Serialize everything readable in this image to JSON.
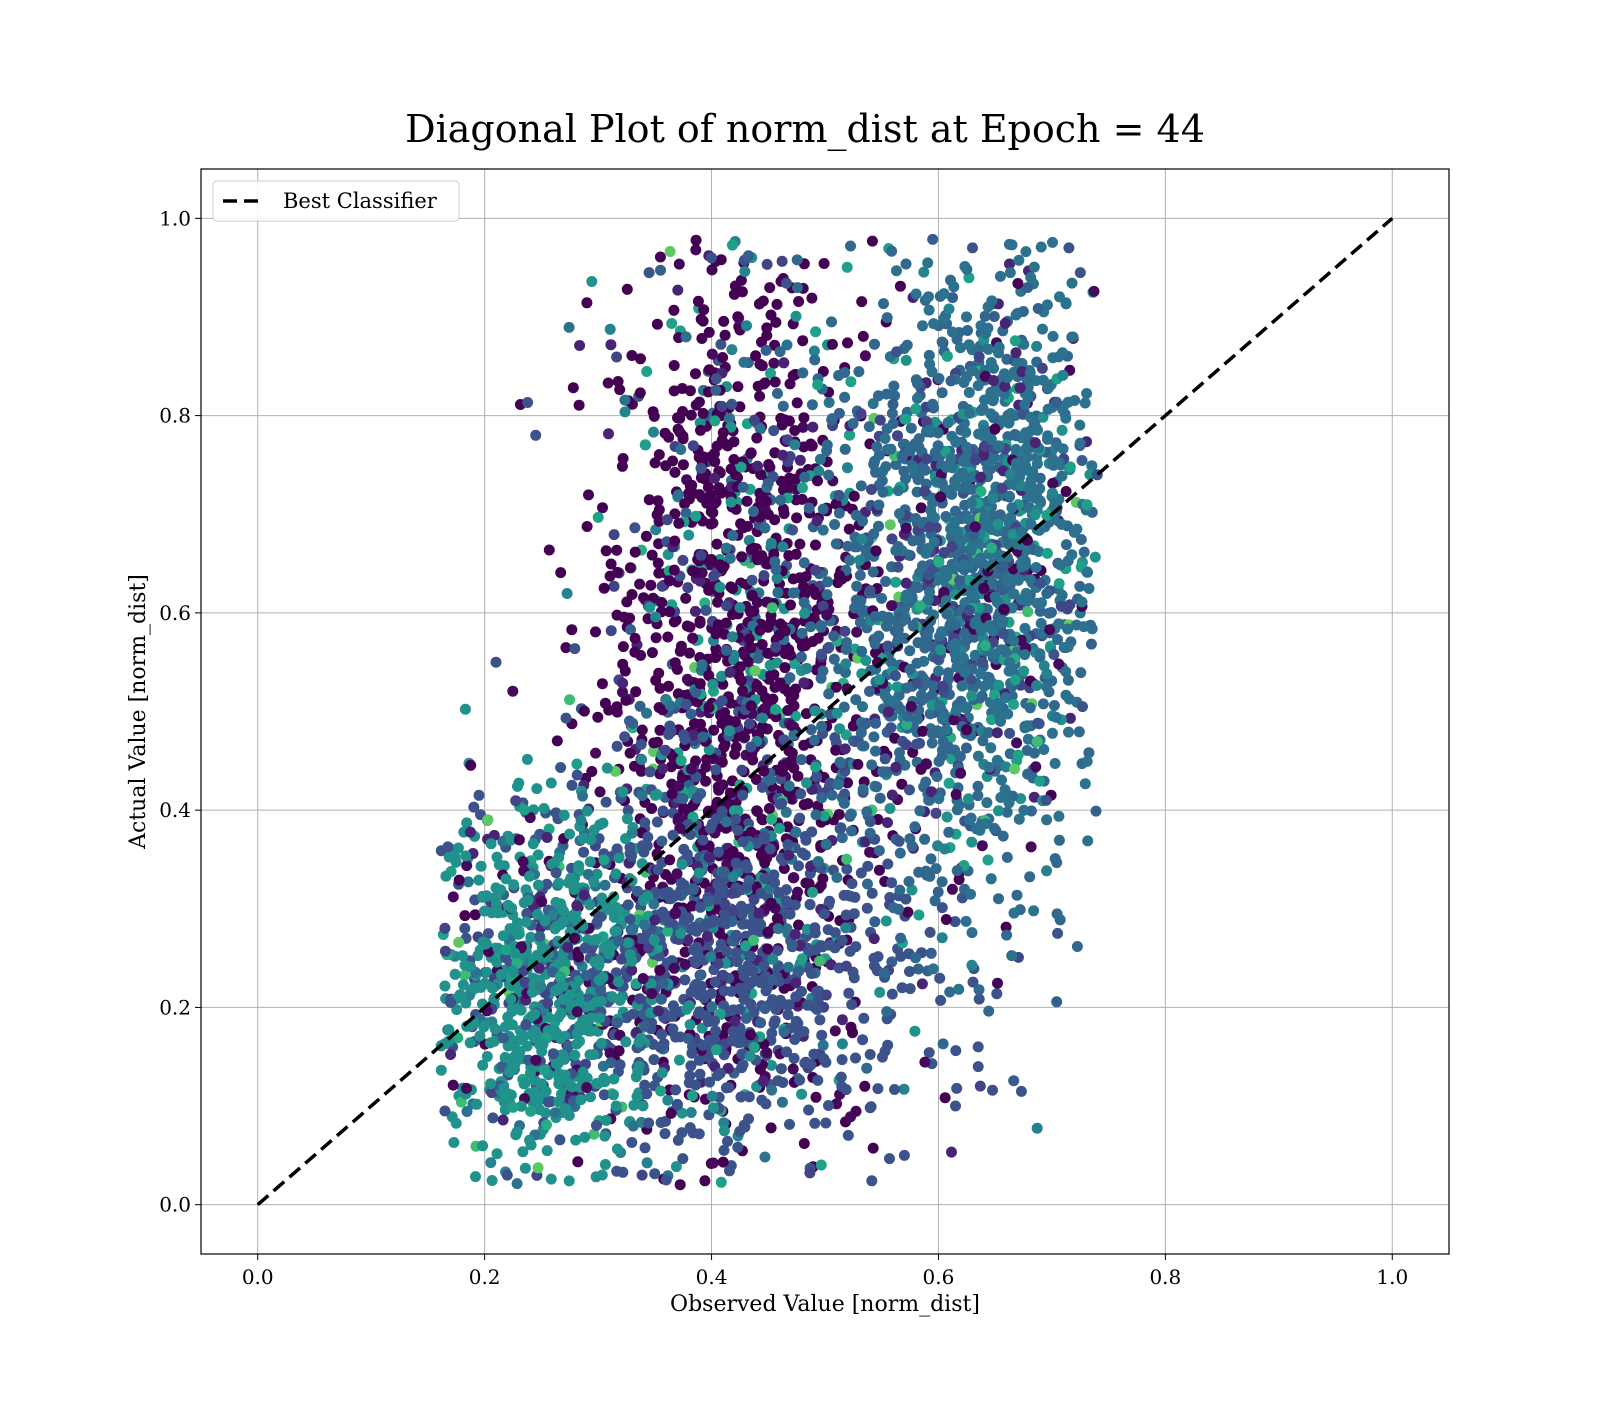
{
  "chart_data": {
    "type": "scatter",
    "title": "Diagonal Plot of norm_dist at Epoch = 44",
    "xlabel": "Observed Value [norm_dist]",
    "ylabel": "Actual Value [norm_dist]",
    "xlim": [
      -0.05,
      1.05
    ],
    "ylim": [
      -0.05,
      1.05
    ],
    "xticks": [
      "0.0",
      "0.2",
      "0.4",
      "0.6",
      "0.8",
      "1.0"
    ],
    "yticks": [
      "0.0",
      "0.2",
      "0.4",
      "0.6",
      "0.8",
      "1.0"
    ],
    "xtick_values": [
      0.0,
      0.2,
      0.4,
      0.6,
      0.8,
      1.0
    ],
    "ytick_values": [
      0.0,
      0.2,
      0.4,
      0.6,
      0.8,
      1.0
    ],
    "grid": true,
    "legend": {
      "placement": "upper-left",
      "entries": [
        "Best Classifier"
      ]
    },
    "reference_line": {
      "label": "Best Classifier",
      "style": "dashed",
      "color": "#000000",
      "x": [
        0.0,
        1.0
      ],
      "y": [
        0.0,
        1.0
      ]
    },
    "colormap": "viridis",
    "point_cloud": {
      "description_x_range": [
        0.16,
        0.74
      ],
      "description_y_range": [
        0.02,
        0.98
      ],
      "clusters": [
        {
          "x_center": 0.42,
          "y_center": 0.55,
          "x_spread": 0.06,
          "y_spread": 0.22,
          "color": "#440154",
          "weight": 0.3
        },
        {
          "x_center": 0.4,
          "y_center": 0.25,
          "x_spread": 0.09,
          "y_spread": 0.1,
          "color": "#3b528b",
          "weight": 0.2
        },
        {
          "x_center": 0.6,
          "y_center": 0.62,
          "x_spread": 0.06,
          "y_spread": 0.16,
          "color": "#31688e",
          "weight": 0.22
        },
        {
          "x_center": 0.25,
          "y_center": 0.22,
          "x_spread": 0.05,
          "y_spread": 0.09,
          "color": "#21918c",
          "weight": 0.15
        },
        {
          "x_center": 0.66,
          "y_center": 0.7,
          "x_spread": 0.04,
          "y_spread": 0.16,
          "color": "#2c728e",
          "weight": 0.13
        }
      ],
      "sample_points": [
        {
          "x": 0.195,
          "y": 0.415
        },
        {
          "x": 0.245,
          "y": 0.78
        },
        {
          "x": 0.21,
          "y": 0.55
        },
        {
          "x": 0.345,
          "y": 0.945
        },
        {
          "x": 0.4,
          "y": 0.96
        },
        {
          "x": 0.63,
          "y": 0.97
        },
        {
          "x": 0.715,
          "y": 0.97
        },
        {
          "x": 0.725,
          "y": 0.945
        },
        {
          "x": 0.74,
          "y": 0.74
        },
        {
          "x": 0.705,
          "y": 0.275
        },
        {
          "x": 0.615,
          "y": 0.1
        },
        {
          "x": 0.57,
          "y": 0.05
        },
        {
          "x": 0.36,
          "y": 0.025
        },
        {
          "x": 0.22,
          "y": 0.03
        },
        {
          "x": 0.165,
          "y": 0.095
        },
        {
          "x": 0.17,
          "y": 0.205
        },
        {
          "x": 0.635,
          "y": 0.14
        },
        {
          "x": 0.635,
          "y": 0.16
        },
        {
          "x": 0.69,
          "y": 0.63
        },
        {
          "x": 0.727,
          "y": 0.505
        },
        {
          "x": 0.695,
          "y": 0.41
        }
      ]
    }
  }
}
